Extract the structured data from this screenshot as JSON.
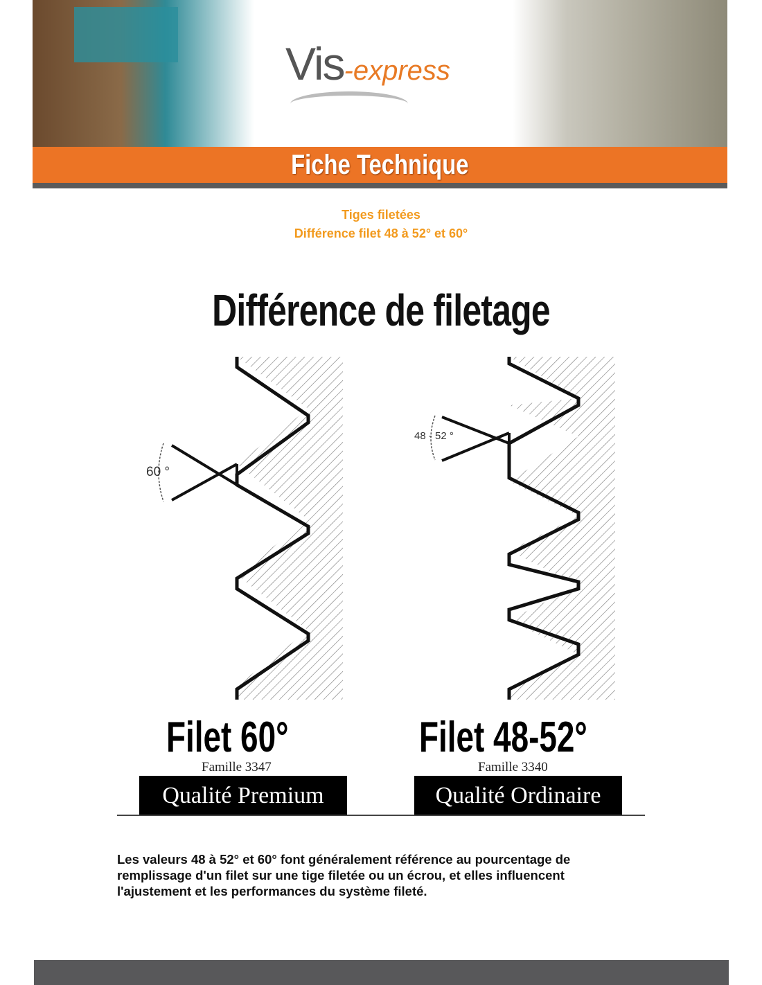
{
  "header": {
    "logo_main": "Vis",
    "logo_suffix": "-express",
    "banner_title": "Fiche Technique"
  },
  "subtitle": {
    "line1": "Tiges filetées",
    "line2": "Différence filet 48 à 52° et 60°"
  },
  "diagram": {
    "title": "Différence de filetage",
    "left": {
      "angle_label": "60 °",
      "name": "Filet 60°",
      "family": "Famille 3347",
      "quality": "Qualité Premium"
    },
    "right": {
      "angle_label": "48 - 52 °",
      "name": "Filet 48-52°",
      "family": "Famille 3340",
      "quality": "Qualité Ordinaire"
    }
  },
  "body": {
    "text": "Les valeurs 48 à 52° et 60° font généralement référence au pourcentage de remplissage d'un filet sur une tige filetée ou un écrou, et elles influencent l'ajustement et les performances du système fileté."
  },
  "colors": {
    "orange": "#ec7425",
    "subtitle": "#f29a1e",
    "footer": "#58585a"
  }
}
